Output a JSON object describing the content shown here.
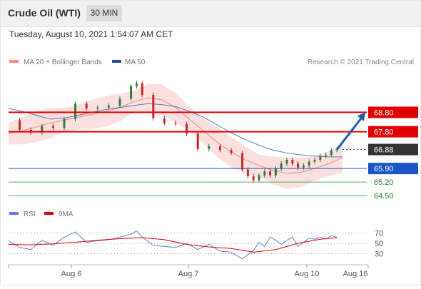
{
  "header": {
    "instrument": "Crude Oil (WTI)",
    "timeframe": "30 MIN",
    "datetime": "Tuesday, August 10, 2021 1:54:07 AM CET"
  },
  "colors": {
    "price_up": "#2e7d32",
    "price_down": "#c62828",
    "ma20": "#f28b82",
    "bollinger_fill": "#fcdcdc",
    "ma50": "#1f4e9e",
    "resistance": "#e00000",
    "support_blue": "#1a56c4",
    "support_green": "#4caf50",
    "current_price_bg": "#333333",
    "arrow": "#1f5fa8",
    "rsi": "#5b7fd8",
    "rsi_ma": "#e00000"
  },
  "legend": {
    "ma20_label": "MA 20 + Bollinger Bands",
    "ma50_label": "MA 50",
    "copyright": "Research © 2021 Trading Central",
    "rsi_label": "RSI",
    "rsi_ma_label": "9MA"
  },
  "chart_data": {
    "type": "line",
    "title": "",
    "price_levels": [
      {
        "value": 68.8,
        "label": "68.80",
        "kind": "resistance",
        "style": "red-line"
      },
      {
        "value": 67.8,
        "label": "67.80",
        "kind": "resistance",
        "style": "red-line"
      },
      {
        "value": 66.88,
        "label": "66.88",
        "kind": "current",
        "style": "dotted"
      },
      {
        "value": 65.9,
        "label": "65.90",
        "kind": "pivot",
        "style": "blue-line"
      },
      {
        "value": 65.2,
        "label": "65.20",
        "kind": "support",
        "style": "green-line"
      },
      {
        "value": 64.5,
        "label": "64.50",
        "kind": "support",
        "style": "green-line"
      }
    ],
    "ylim": [
      64.1,
      71.1
    ],
    "x_labels": [
      "Aug 6",
      "Aug 7",
      "Aug 10",
      "Aug 16"
    ],
    "series": [
      {
        "name": "MA 20 + Bollinger Bands",
        "x": [
          0,
          5,
          10,
          15,
          20,
          25,
          30,
          35,
          40,
          45,
          50,
          55,
          60,
          65,
          70,
          75,
          80,
          85,
          90,
          95,
          100,
          105,
          110,
          115,
          120
        ],
        "values": [
          67.7,
          67.85,
          68.05,
          68.25,
          68.4,
          68.55,
          68.7,
          68.85,
          69.05,
          69.35,
          69.55,
          69.45,
          69.05,
          68.45,
          67.85,
          67.25,
          66.75,
          66.35,
          66.05,
          65.8,
          65.65,
          65.7,
          65.9,
          66.15,
          66.45
        ]
      },
      {
        "name": "MA 50",
        "x": [
          0,
          5,
          10,
          15,
          20,
          25,
          30,
          35,
          40,
          45,
          50,
          55,
          60,
          65,
          70,
          75,
          80,
          85,
          90,
          95,
          100,
          105,
          110,
          115,
          120
        ],
        "values": [
          69.0,
          68.85,
          68.65,
          68.45,
          68.5,
          68.65,
          68.8,
          68.95,
          69.05,
          69.15,
          69.25,
          69.2,
          69.1,
          68.85,
          68.55,
          68.15,
          67.75,
          67.4,
          67.1,
          66.85,
          66.7,
          66.6,
          66.55,
          66.5,
          66.5
        ]
      },
      {
        "name": "Price",
        "x": [
          0,
          4,
          8,
          12,
          16,
          20,
          24,
          28,
          32,
          36,
          40,
          44,
          46,
          48,
          52,
          56,
          60,
          64,
          68,
          72,
          76,
          80,
          84,
          86,
          88,
          90,
          92,
          94,
          96,
          98,
          100,
          102,
          104,
          106,
          108,
          110,
          112,
          114,
          116,
          118
        ],
        "values": [
          68.4,
          67.9,
          67.75,
          68.1,
          68.0,
          68.45,
          69.25,
          69.0,
          69.05,
          69.15,
          69.5,
          70.15,
          70.3,
          69.7,
          68.5,
          68.25,
          68.2,
          67.7,
          66.9,
          67.05,
          66.85,
          66.7,
          65.85,
          65.5,
          65.3,
          65.55,
          65.75,
          65.55,
          65.9,
          66.15,
          66.35,
          66.15,
          65.95,
          66.05,
          66.25,
          66.35,
          66.55,
          66.6,
          66.85,
          66.88
        ]
      }
    ]
  },
  "rsi_data": {
    "type": "line",
    "levels": [
      70,
      50,
      30
    ],
    "ylim": [
      10,
      90
    ],
    "series": [
      {
        "name": "RSI",
        "x": [
          0,
          4,
          8,
          12,
          16,
          20,
          24,
          28,
          32,
          36,
          40,
          44,
          46,
          48,
          52,
          56,
          60,
          64,
          68,
          72,
          76,
          80,
          84,
          86,
          88,
          90,
          92,
          94,
          96,
          98,
          100,
          102,
          104,
          106,
          108,
          110,
          112,
          114,
          116,
          118
        ],
        "values": [
          55,
          42,
          38,
          56,
          46,
          62,
          72,
          52,
          55,
          57,
          62,
          68,
          74,
          62,
          46,
          44,
          42,
          50,
          38,
          48,
          35,
          33,
          20,
          28,
          36,
          52,
          44,
          62,
          56,
          48,
          56,
          62,
          44,
          52,
          60,
          58,
          62,
          58,
          65,
          62
        ]
      },
      {
        "name": "9MA",
        "x": [
          0,
          8,
          16,
          24,
          32,
          40,
          48,
          56,
          64,
          72,
          80,
          88,
          96,
          104,
          112,
          118
        ],
        "values": [
          48,
          47,
          49,
          52,
          56,
          59,
          61,
          57,
          48,
          43,
          40,
          33,
          38,
          50,
          58,
          61
        ]
      }
    ]
  }
}
